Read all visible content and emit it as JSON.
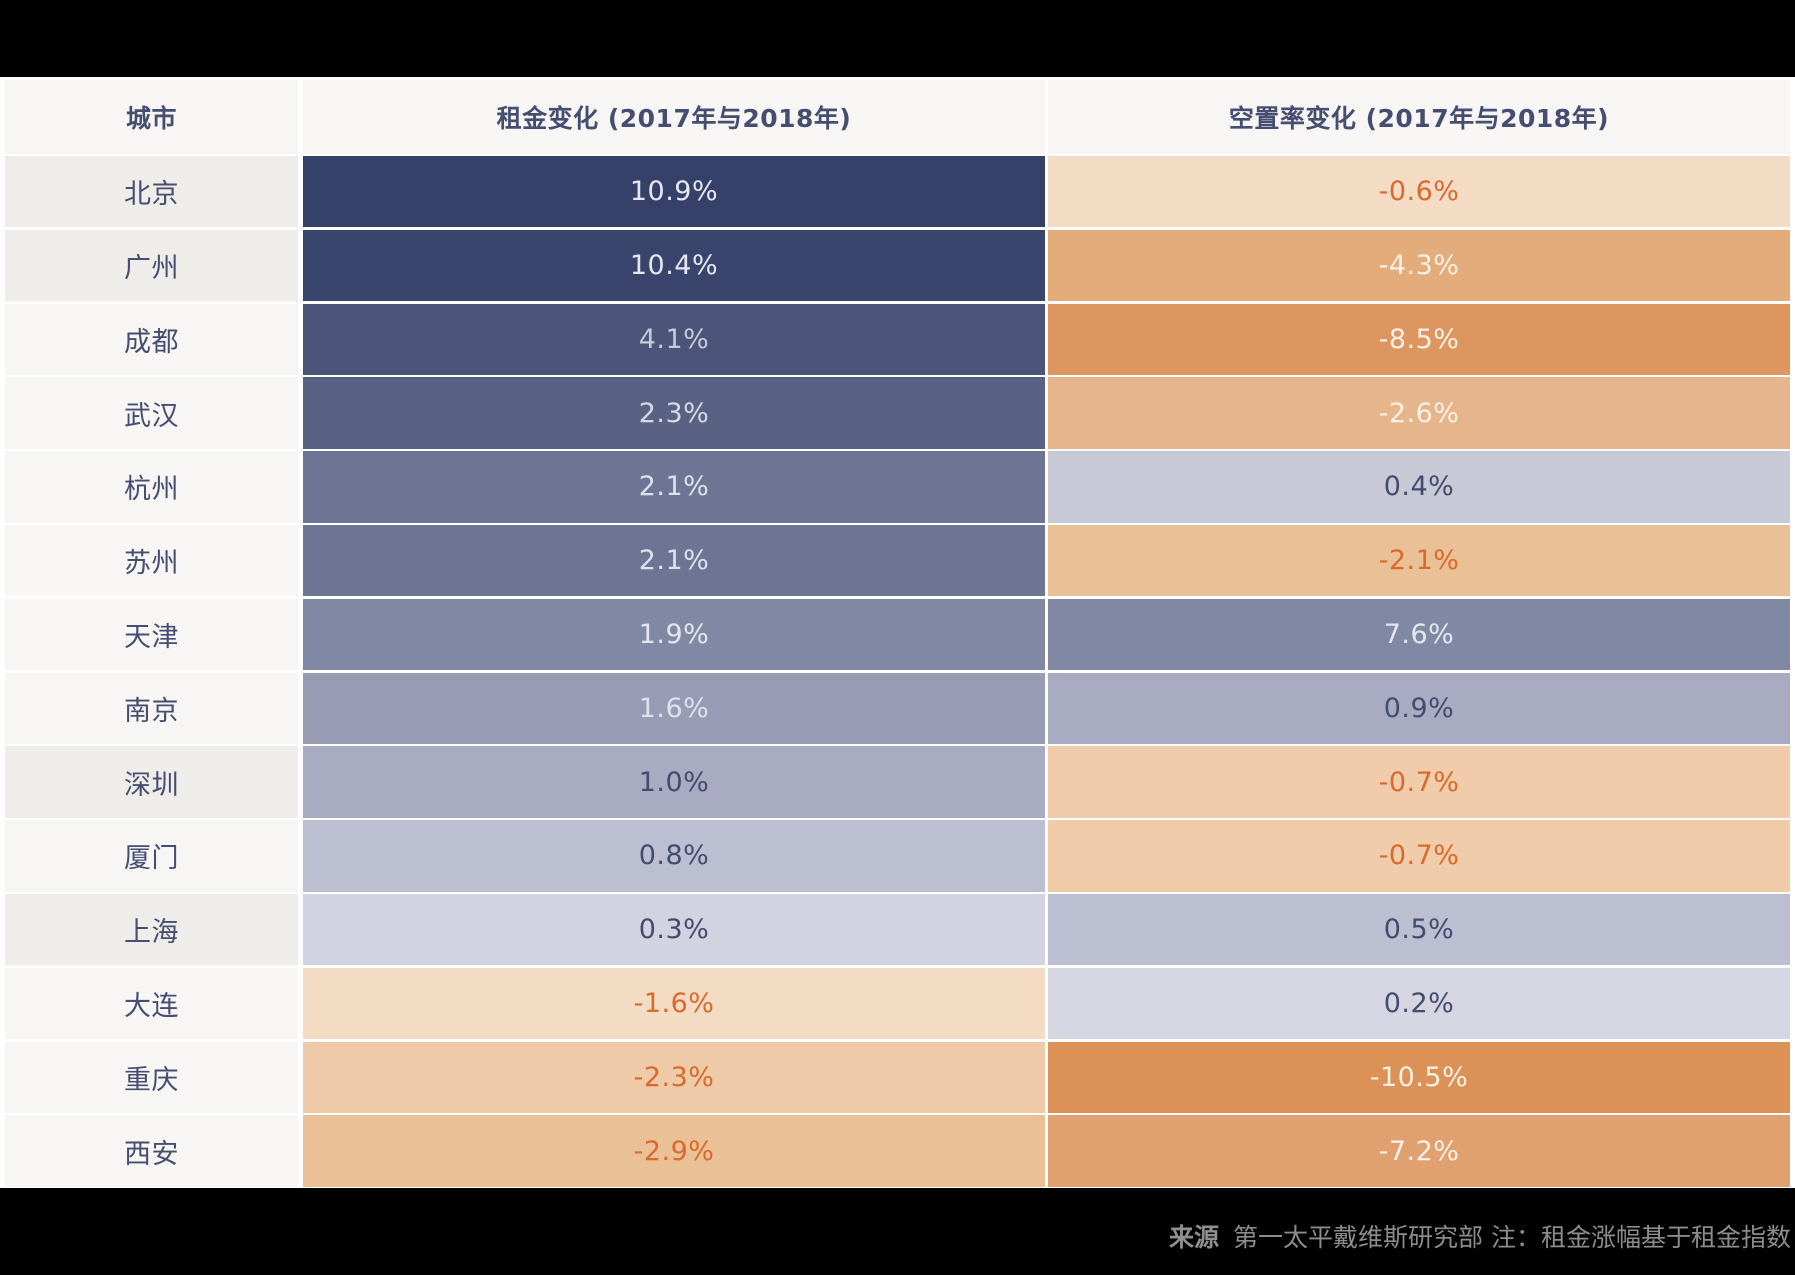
{
  "chart_data": {
    "type": "table",
    "headers": [
      "城市",
      "租金变化 (2017年与2018年)",
      "空置率变化 (2017年与2018年)"
    ],
    "rows": [
      {
        "city": "北京",
        "rent": "10.9%",
        "vacancy": "-0.6%"
      },
      {
        "city": "广州",
        "rent": "10.4%",
        "vacancy": "-4.3%"
      },
      {
        "city": "成都",
        "rent": "4.1%",
        "vacancy": "-8.5%"
      },
      {
        "city": "武汉",
        "rent": "2.3%",
        "vacancy": "-2.6%"
      },
      {
        "city": "杭州",
        "rent": "2.1%",
        "vacancy": "0.4%"
      },
      {
        "city": "苏州",
        "rent": "2.1%",
        "vacancy": "-2.1%"
      },
      {
        "city": "天津",
        "rent": "1.9%",
        "vacancy": "7.6%"
      },
      {
        "city": "南京",
        "rent": "1.6%",
        "vacancy": "0.9%"
      },
      {
        "city": "深圳",
        "rent": "1.0%",
        "vacancy": "-0.7%"
      },
      {
        "city": "厦门",
        "rent": "0.8%",
        "vacancy": "-0.7%"
      },
      {
        "city": "上海",
        "rent": "0.3%",
        "vacancy": "0.5%"
      },
      {
        "city": "大连",
        "rent": "-1.6%",
        "vacancy": "0.2%"
      },
      {
        "city": "重庆",
        "rent": "-2.3%",
        "vacancy": "-10.5%"
      },
      {
        "city": "西安",
        "rent": "-2.9%",
        "vacancy": "-7.2%"
      }
    ],
    "highlighted_cities": [
      "北京",
      "广州",
      "深圳",
      "上海"
    ]
  },
  "footer": {
    "source_label": "来源",
    "source_text": "第一太平戴维斯研究部 注：租金涨幅基于租金指数"
  },
  "colors": {
    "header_bg": "#f7f6f5",
    "city_bg": "#f7f6f5",
    "city_highlight_bg": "#efedea",
    "header_text": "#454e70",
    "rent_cells": [
      {
        "bg": "#36416a",
        "fg": "#e6e8f0"
      },
      {
        "bg": "#3a456d",
        "fg": "#e6e8f0"
      },
      {
        "bg": "#4b5479",
        "fg": "#c6cadb"
      },
      {
        "bg": "#5a6283",
        "fg": "#d5d8e4"
      },
      {
        "bg": "#6e7594",
        "fg": "#dfe1ea"
      },
      {
        "bg": "#6e7594",
        "fg": "#dfe1ea"
      },
      {
        "bg": "#8188a3",
        "fg": "#e4e6ee"
      },
      {
        "bg": "#979bb4",
        "fg": "#dfe1ea"
      },
      {
        "bg": "#a8abc2",
        "fg": "#444c6e"
      },
      {
        "bg": "#bcbfd1",
        "fg": "#444c6e"
      },
      {
        "bg": "#d2d3e0",
        "fg": "#444c6e"
      },
      {
        "bg": "#f3dbc4",
        "fg": "#d96a2b"
      },
      {
        "bg": "#eecaa8",
        "fg": "#d96a2b"
      },
      {
        "bg": "#eac097",
        "fg": "#d96a2b"
      }
    ],
    "vacancy_cells": [
      {
        "bg": "#f3dbc4",
        "fg": "#d96a2b"
      },
      {
        "bg": "#e4ac7b",
        "fg": "#fbf1e7"
      },
      {
        "bg": "#dd9660",
        "fg": "#fbf1e7"
      },
      {
        "bg": "#e7b58c",
        "fg": "#fbf1e7"
      },
      {
        "bg": "#c7c9d7",
        "fg": "#444c6e"
      },
      {
        "bg": "#eac097",
        "fg": "#d96a2b"
      },
      {
        "bg": "#8188a3",
        "fg": "#e4e6ee"
      },
      {
        "bg": "#a8abc2",
        "fg": "#444c6e"
      },
      {
        "bg": "#f0ccab",
        "fg": "#d96a2b"
      },
      {
        "bg": "#f0ccab",
        "fg": "#d96a2b"
      },
      {
        "bg": "#bcbfd1",
        "fg": "#444c6e"
      },
      {
        "bg": "#d5d6e2",
        "fg": "#444c6e"
      },
      {
        "bg": "#dc9157",
        "fg": "#fbf1e7"
      },
      {
        "bg": "#e0a06f",
        "fg": "#fbf1e7"
      }
    ]
  }
}
